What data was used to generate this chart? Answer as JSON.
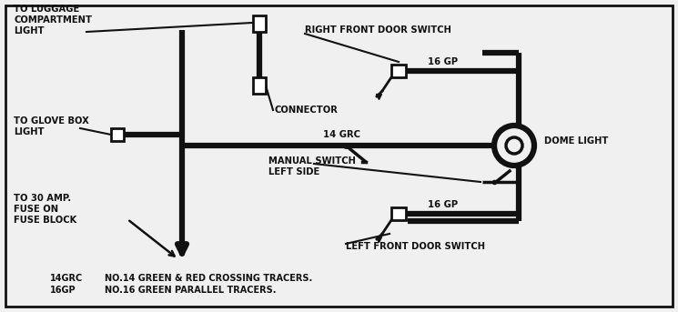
{
  "bg_color": "#f0f0f0",
  "line_color": "#111111",
  "font_color": "#111111",
  "lw_thick": 4.5,
  "lw_med": 2.5,
  "lw_thin": 1.5,
  "fs_label": 7.2,
  "fs_legend": 7.0,
  "legend": [
    {
      "code": "14GRC",
      "desc": "NO.14 GREEN & RED CROSSING TRACERS."
    },
    {
      "code": "16GP",
      "desc": "NO.16 GREEN PARALLEL TRACERS."
    }
  ],
  "labels": {
    "luggage": [
      "TO LUGGAGE",
      "COMPARTMENT",
      "LIGHT"
    ],
    "glovebox": [
      "TO GLOVE BOX",
      "LIGHT"
    ],
    "fuse": [
      "TO 30 AMP.",
      "FUSE ON",
      "FUSE BLOCK"
    ],
    "connector": "CONNECTOR",
    "manual_switch": "MANUAL SWITCH",
    "left_side": "LEFT SIDE",
    "wire_14grc": "14 GRC",
    "wire_16gp_top": "16 GP",
    "wire_16gp_bot": "16 GP",
    "dome_light": "DOME LIGHT",
    "right_switch": "RIGHT FRONT DOOR SWITCH",
    "left_switch": "LEFT FRONT DOOR SWITCH"
  }
}
